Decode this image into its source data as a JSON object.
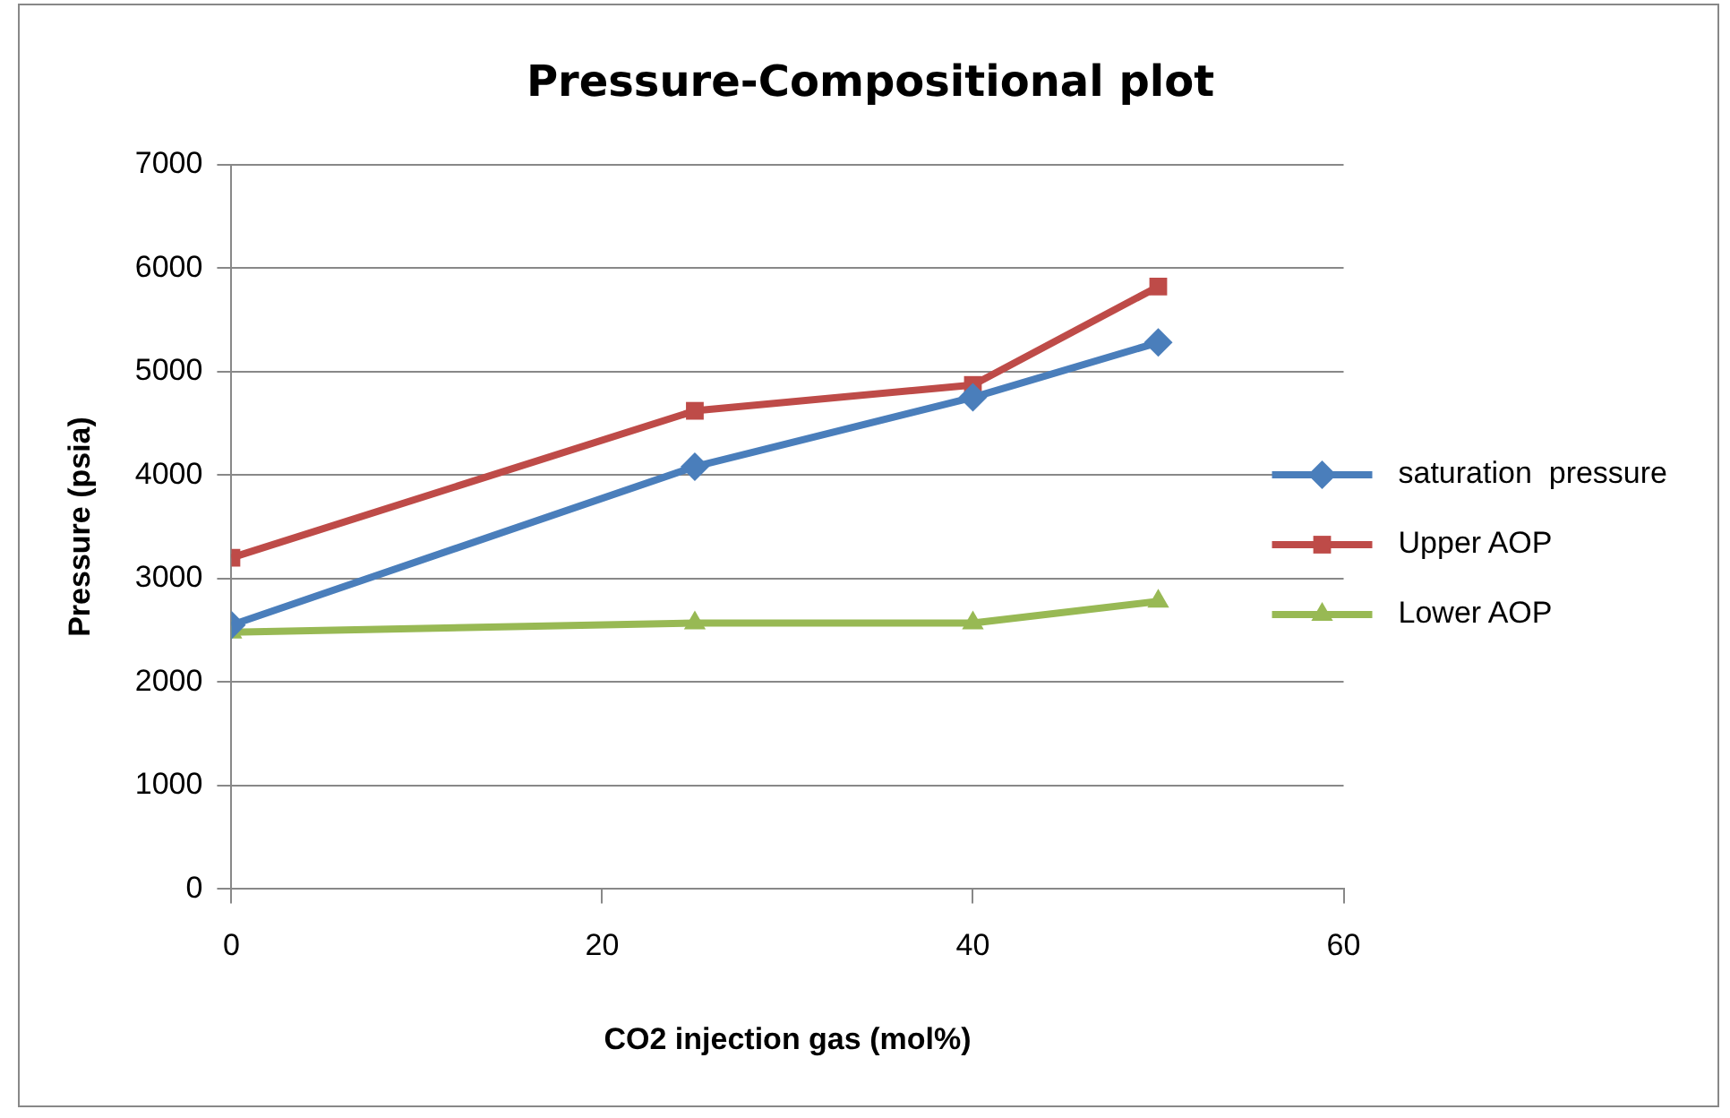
{
  "chart_data": {
    "type": "line",
    "title": "Pressure-Compositional plot",
    "xlabel": "CO2 injection gas (mol%)",
    "ylabel": "Pressure (psia)",
    "x": [
      0,
      25,
      40,
      50
    ],
    "series": [
      {
        "name": "saturation  pressure",
        "color": "#4a7ebb",
        "marker": "diamond",
        "values": [
          2550,
          4080,
          4750,
          5280
        ]
      },
      {
        "name": "Upper AOP",
        "color": "#be4b48",
        "marker": "square",
        "values": [
          3200,
          4620,
          4870,
          5820
        ]
      },
      {
        "name": "Lower AOP",
        "color": "#98b954",
        "marker": "triangle",
        "values": [
          2480,
          2570,
          2570,
          2780
        ]
      }
    ],
    "xlim": [
      0,
      60
    ],
    "xticks": [
      0,
      20,
      40,
      60
    ],
    "ylim": [
      0,
      7000
    ],
    "yticks": [
      0,
      1000,
      2000,
      3000,
      4000,
      5000,
      6000,
      7000
    ],
    "grid": "y",
    "legend": "right",
    "line_style": "solid"
  }
}
